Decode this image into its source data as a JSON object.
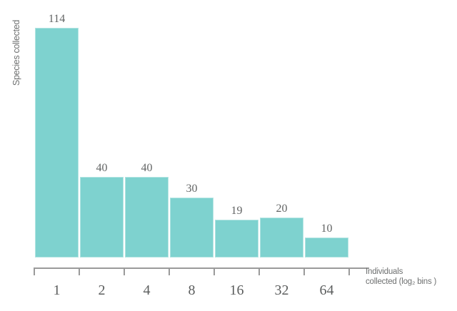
{
  "chart_data": {
    "type": "bar",
    "title": "",
    "categories": [
      "1",
      "2",
      "4",
      "8",
      "16",
      "32",
      "64"
    ],
    "values": [
      114,
      40,
      40,
      30,
      19,
      20,
      10
    ],
    "xlabel_line1": "Individuals",
    "xlabel_line2": "collected (log₂ bins )",
    "ylabel": "Species collected",
    "ylim": [
      0,
      120
    ],
    "grid": false,
    "legend": "none",
    "layout_hint": "bars sit on a baseline floating above a separate ticked x-axis line; value labels above each bar; no y-axis line or y ticks",
    "colors": {
      "bar_fill": "#7ed2cf",
      "bar_border": "#b2e4e2",
      "value_label_text": "#636565",
      "category_text": "#5c5e5e",
      "axis_title_text": "#6e7070",
      "axis_line": "#9a9a9a",
      "background": "#ffffff"
    }
  }
}
